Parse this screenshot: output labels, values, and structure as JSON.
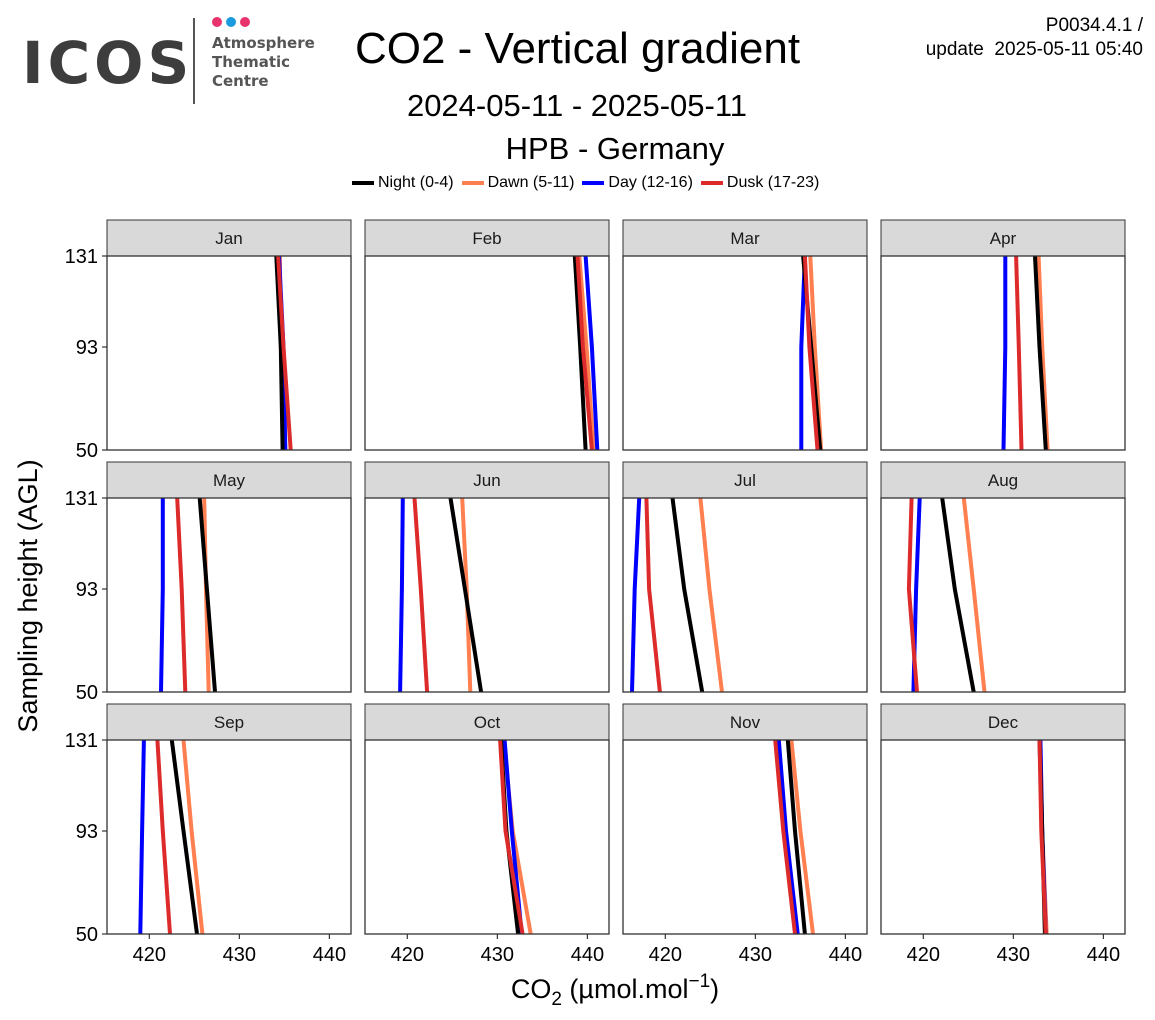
{
  "header": {
    "logo_text": "ICOS",
    "logo_sub": [
      "Atmosphere",
      "Thematic",
      "Centre"
    ],
    "logo_dot_colors": [
      "#e8336d",
      "#1a9be0",
      "#e8336d"
    ],
    "title": "CO2 - Vertical gradient",
    "date_range": "2024-05-11 - 2025-05-11",
    "station": "HPB - Germany",
    "product_id": "P0034.4.1 /",
    "update": "update  2025-05-11 05:40"
  },
  "chart_data": {
    "type": "line",
    "layout": "facet-grid 3x4",
    "xlabel_parts": [
      "CO",
      "2",
      " (µmol.mol",
      "−1",
      ")"
    ],
    "ylabel": "Sampling height (AGL)",
    "x_ticks": [
      420,
      430,
      440
    ],
    "y_ticks": [
      50,
      93,
      131
    ],
    "xlim": [
      415.3,
      442.4
    ],
    "ylim": [
      50,
      131
    ],
    "grid": false,
    "legend_position": "top",
    "heights": [
      50,
      93,
      131
    ],
    "series": [
      {
        "name": "Night (0-4)",
        "color": "#000000"
      },
      {
        "name": "Dawn (5-11)",
        "color": "#ff7f50"
      },
      {
        "name": "Day (12-16)",
        "color": "#0000ff"
      },
      {
        "name": "Dusk (17-23)",
        "color": "#dd2a2a"
      }
    ],
    "draw_order": [
      "Dawn (5-11)",
      "Day (12-16)",
      "Night (0-4)",
      "Dusk (17-23)"
    ],
    "panels": [
      {
        "label": "Jan",
        "values": {
          "Night (0-4)": [
            434.8,
            434.6,
            434.1
          ],
          "Dawn (5-11)": [
            435.1,
            434.6,
            434.5
          ],
          "Day (12-16)": [
            435.1,
            434.9,
            434.4
          ],
          "Dusk (17-23)": [
            435.7,
            434.9,
            434.3
          ]
        }
      },
      {
        "label": "Feb",
        "values": {
          "Night (0-4)": [
            439.8,
            439.2,
            438.6
          ],
          "Dawn (5-11)": [
            440.7,
            439.9,
            439.1
          ],
          "Day (12-16)": [
            441.1,
            440.5,
            439.8
          ],
          "Dusk (17-23)": [
            440.5,
            439.5,
            438.9
          ]
        }
      },
      {
        "label": "Mar",
        "values": {
          "Night (0-4)": [
            437.2,
            436.2,
            435.3
          ],
          "Dawn (5-11)": [
            437.3,
            436.6,
            436.1
          ],
          "Day (12-16)": [
            435.1,
            435.1,
            435.5
          ],
          "Dusk (17-23)": [
            436.9,
            436.0,
            435.5
          ]
        }
      },
      {
        "label": "Apr",
        "values": {
          "Night (0-4)": [
            433.6,
            432.9,
            432.4
          ],
          "Dawn (5-11)": [
            433.8,
            433.2,
            432.8
          ],
          "Day (12-16)": [
            428.9,
            429.1,
            429.1
          ],
          "Dusk (17-23)": [
            430.9,
            430.6,
            430.3
          ]
        }
      },
      {
        "label": "May",
        "values": {
          "Night (0-4)": [
            427.3,
            426.4,
            425.6
          ],
          "Dawn (5-11)": [
            426.6,
            426.3,
            426.1
          ],
          "Day (12-16)": [
            421.3,
            421.5,
            421.5
          ],
          "Dusk (17-23)": [
            424.0,
            423.6,
            423.1
          ]
        }
      },
      {
        "label": "Jun",
        "values": {
          "Night (0-4)": [
            428.2,
            426.4,
            424.8
          ],
          "Dawn (5-11)": [
            427.0,
            426.6,
            426.1
          ],
          "Day (12-16)": [
            419.2,
            419.4,
            419.5
          ],
          "Dusk (17-23)": [
            422.2,
            421.5,
            420.8
          ]
        }
      },
      {
        "label": "Jul",
        "values": {
          "Night (0-4)": [
            424.1,
            422.1,
            420.8
          ],
          "Dawn (5-11)": [
            426.3,
            424.9,
            423.9
          ],
          "Day (12-16)": [
            416.3,
            416.6,
            417.1
          ],
          "Dusk (17-23)": [
            419.4,
            418.2,
            417.9
          ]
        }
      },
      {
        "label": "Aug",
        "values": {
          "Night (0-4)": [
            425.6,
            423.5,
            422.1
          ],
          "Dawn (5-11)": [
            426.8,
            425.6,
            424.5
          ],
          "Day (12-16)": [
            418.9,
            419.2,
            419.6
          ],
          "Dusk (17-23)": [
            419.3,
            418.4,
            418.7
          ]
        }
      },
      {
        "label": "Sep",
        "values": {
          "Night (0-4)": [
            425.3,
            423.8,
            422.5
          ],
          "Dawn (5-11)": [
            425.9,
            424.7,
            423.8
          ],
          "Day (12-16)": [
            419.0,
            419.2,
            419.4
          ],
          "Dusk (17-23)": [
            422.3,
            421.5,
            420.9
          ]
        }
      },
      {
        "label": "Oct",
        "values": {
          "Night (0-4)": [
            432.3,
            431.0,
            430.4
          ],
          "Dawn (5-11)": [
            433.7,
            431.7,
            430.7
          ],
          "Day (12-16)": [
            432.7,
            431.6,
            430.8
          ],
          "Dusk (17-23)": [
            432.8,
            430.9,
            430.3
          ]
        }
      },
      {
        "label": "Nov",
        "values": {
          "Night (0-4)": [
            435.5,
            434.4,
            433.6
          ],
          "Dawn (5-11)": [
            436.4,
            435.0,
            434.0
          ],
          "Day (12-16)": [
            434.7,
            433.4,
            432.6
          ],
          "Dusk (17-23)": [
            434.4,
            433.1,
            432.2
          ]
        }
      },
      {
        "label": "Dec",
        "values": {
          "Night (0-4)": [
            433.5,
            433.2,
            432.9
          ],
          "Dawn (5-11)": [
            433.7,
            433.2,
            433.0
          ],
          "Day (12-16)": [
            433.6,
            433.2,
            433.0
          ],
          "Dusk (17-23)": [
            433.6,
            433.1,
            432.9
          ]
        }
      }
    ]
  }
}
